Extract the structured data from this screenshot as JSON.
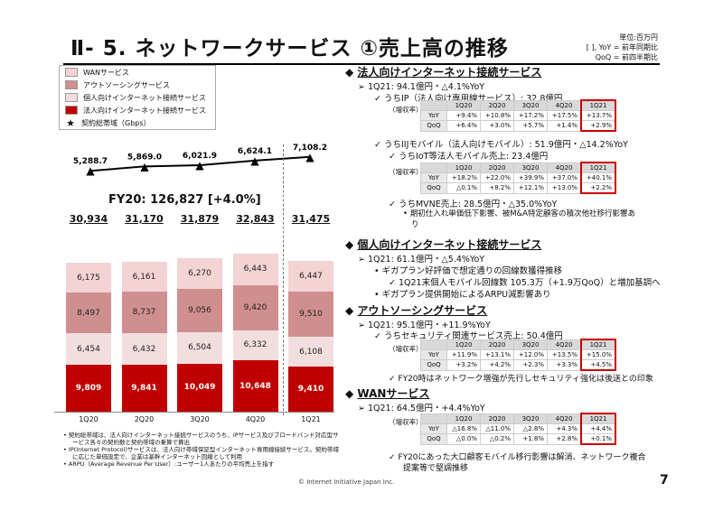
{
  "header": {
    "title": "Ⅱ- 5.  ネットワークサービス  ①売上高の推移",
    "units_1": "単位:百万円",
    "units_2": "[ ], YoY = 前年同期比",
    "units_3": "QoQ = 前四半期比"
  },
  "legend": {
    "wan": "WANサービス",
    "outsourcing": "アウトソーシングサービス",
    "personal": "個人向けインターネット接続サービス",
    "corporate": "法人向けインターネット接続サービス",
    "bandwidth": "契約総帯域（Gbps）"
  },
  "colors": {
    "wan": "#f3d3d3",
    "outsourcing": "#d08f8f",
    "personal": "#f2dede",
    "corporate": "#c00000",
    "table_highlight": "#cc0000"
  },
  "fy_label": "FY20: 126,827 [+4.0%]",
  "chart_data": {
    "type": "bar",
    "stacked": true,
    "categories": [
      "1Q20",
      "2Q20",
      "3Q20",
      "4Q20",
      "1Q21"
    ],
    "series": [
      {
        "name": "法人向けインターネット接続サービス",
        "values": [
          9809,
          9841,
          10049,
          10648,
          9410
        ]
      },
      {
        "name": "個人向けインターネット接続サービス",
        "values": [
          6454,
          6432,
          6504,
          6332,
          6108
        ]
      },
      {
        "name": "アウトソーシングサービス",
        "values": [
          8497,
          8737,
          9056,
          9420,
          9510
        ]
      },
      {
        "name": "WANサービス",
        "values": [
          6175,
          6161,
          6270,
          6443,
          6447
        ]
      }
    ],
    "totals": [
      "30,934",
      "31,170",
      "31,879",
      "32,843",
      "31,475"
    ],
    "line_series": {
      "name": "契約総帯域（Gbps）",
      "values": [
        5288.7,
        5869.0,
        6021.9,
        6624.1,
        7108.2
      ]
    },
    "segment_labels": [
      [
        "9,809",
        "9,841",
        "10,049",
        "10,648",
        "9,410"
      ],
      [
        "6,454",
        "6,432",
        "6,504",
        "6,332",
        "6,108"
      ],
      [
        "8,497",
        "8,737",
        "9,056",
        "9,420",
        "9,510"
      ],
      [
        "6,175",
        "6,161",
        "6,270",
        "6,443",
        "6,447"
      ]
    ],
    "line_labels": [
      "5,288.7",
      "5,869.0",
      "6,021.9",
      "6,624.1",
      "7,108.2"
    ]
  },
  "footnotes": [
    "•  契約総帯域は、法人向けインターネット接続サービスのうち、IPサービス及びブロードバンド対応型サービス各々の契約数と契約帯域の乗算で算出",
    "•  IP(Internet Protocol)サービスは、法人向け帯域保証型インターネット専用線接続サービス。契約帯域に応じた単価設定で、企業は基幹インターネット回線として利用",
    "•  ARPU（Average Revenue Per User）:ユーザー1人あたりの平均売上を指す"
  ],
  "copyright": "© Internet Initiative Japan Inc.",
  "page_number": "7",
  "right": {
    "corp_heading": "法人向けインターネット接続サービス",
    "corp_1q21": "1Q21: 94.1億円・△4.1%YoY",
    "ip_line": "うちIP（法人向け専用線サービス）: 32.8億円",
    "growth_label": "（増収率）",
    "ip_table": {
      "cols": [
        "1Q20",
        "2Q20",
        "3Q20",
        "4Q20",
        "1Q21"
      ],
      "rows": [
        {
          "label": "YoY",
          "vals": [
            "+9.4%",
            "+10.8%",
            "+17.2%",
            "+17.5%",
            "+13.7%"
          ]
        },
        {
          "label": "QoQ",
          "vals": [
            "+6.4%",
            "+3.0%",
            "+5.7%",
            "+1.4%",
            "+2.9%"
          ]
        }
      ]
    },
    "mobile_line": "うちIIJモバイル（法人向けモバイル）: 51.9億円・△14.2%YoY",
    "iot_line": "うちIoT等法人モバイル売上: 23.4億円",
    "iot_table": {
      "cols": [
        "1Q20",
        "2Q20",
        "3Q20",
        "4Q20",
        "1Q21"
      ],
      "rows": [
        {
          "label": "YoY",
          "vals": [
            "+18.2%",
            "+22.0%",
            "+39.9%",
            "+37.0%",
            "+40.1%"
          ]
        },
        {
          "label": "QoQ",
          "vals": [
            "△0.1%",
            "+8.2%",
            "+12.1%",
            "+13.0%",
            "+2.2%"
          ]
        }
      ]
    },
    "mvne_line": "うちMVNE売上: 28.5億円・△35.0%YoY",
    "mvne_note_1": "期初仕入れ単価低下影響、被M&A特定顧客の積次他社移行影響あ",
    "mvne_note_2": "り",
    "personal_heading": "個人向けインターネット接続サービス",
    "personal_1q21": "1Q21: 61.1億円・△5.4%YoY",
    "giga_1": "ギガプラン好評価で想定通りの回線数獲得推移",
    "giga_sub": "1Q21末個人モバイル回線数 105.3万（+1.9万QoQ）と増加基調へ",
    "giga_2": "ギガプラン提供開始によるARPU減影響あり",
    "outsourcing_heading": "アウトソーシングサービス",
    "outsourcing_1q21": "1Q21: 95.1億円・+11.9%YoY",
    "security_line": "うちセキュリティ関連サービス売上: 50.4億円",
    "sec_table": {
      "cols": [
        "1Q20",
        "2Q20",
        "3Q20",
        "4Q20",
        "1Q21"
      ],
      "rows": [
        {
          "label": "YoY",
          "vals": [
            "+11.9%",
            "+13.1%",
            "+12.0%",
            "+13.5%",
            "+15.0%"
          ]
        },
        {
          "label": "QoQ",
          "vals": [
            "+3.2%",
            "+4.2%",
            "+2.3%",
            "+3.3%",
            "+4.5%"
          ]
        }
      ]
    },
    "sec_note": "FY20時はネットワーク増強が先行しセキュリティ強化は後送との印象",
    "wan_heading": "WANサービス",
    "wan_1q21": "1Q21: 64.5億円・+4.4%YoY",
    "wan_table": {
      "cols": [
        "1Q20",
        "2Q20",
        "3Q20",
        "4Q20",
        "1Q21"
      ],
      "rows": [
        {
          "label": "YoY",
          "vals": [
            "△16.8%",
            "△11.0%",
            "△2.8%",
            "+4.3%",
            "+4.4%"
          ]
        },
        {
          "label": "QoQ",
          "vals": [
            "△0.0%",
            "△0.2%",
            "+1.8%",
            "+2.8%",
            "+0.1%"
          ]
        }
      ]
    },
    "wan_note_1": "FY20にあった大口顧客モバイル移行影響は解消、ネットワーク複合",
    "wan_note_2": "提案等で堅調推移"
  }
}
